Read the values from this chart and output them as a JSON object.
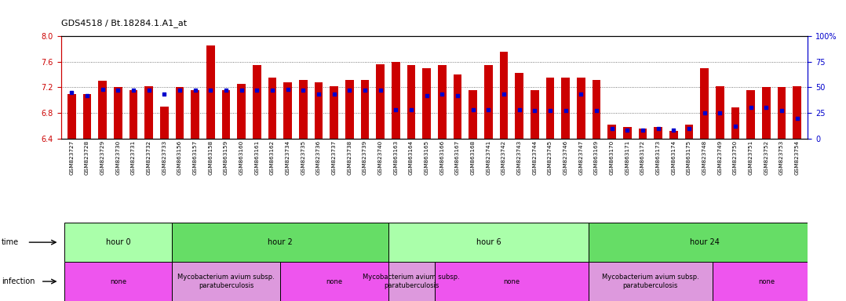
{
  "title": "GDS4518 / Bt.18284.1.A1_at",
  "ylim_left": [
    6.4,
    8.0
  ],
  "ylim_right": [
    0,
    100
  ],
  "yticks_left": [
    6.4,
    6.8,
    7.2,
    7.6,
    8.0
  ],
  "yticks_right": [
    0,
    25,
    50,
    75,
    100
  ],
  "yticklabels_right": [
    "0",
    "25",
    "50",
    "75",
    "100%"
  ],
  "bar_color": "#cc0000",
  "dot_color": "#0000cc",
  "bar_baseline": 6.4,
  "samples": [
    "GSM823727",
    "GSM823728",
    "GSM823729",
    "GSM823730",
    "GSM823731",
    "GSM823732",
    "GSM823733",
    "GSM863156",
    "GSM863157",
    "GSM863158",
    "GSM863159",
    "GSM863160",
    "GSM863161",
    "GSM863162",
    "GSM823734",
    "GSM823735",
    "GSM823736",
    "GSM823737",
    "GSM823738",
    "GSM823739",
    "GSM823740",
    "GSM863163",
    "GSM863164",
    "GSM863165",
    "GSM863166",
    "GSM863167",
    "GSM863168",
    "GSM823741",
    "GSM823742",
    "GSM823743",
    "GSM823744",
    "GSM823745",
    "GSM823746",
    "GSM823747",
    "GSM863169",
    "GSM863170",
    "GSM863171",
    "GSM863172",
    "GSM863173",
    "GSM863174",
    "GSM863175",
    "GSM823748",
    "GSM823749",
    "GSM823750",
    "GSM823751",
    "GSM823752",
    "GSM823753",
    "GSM823754"
  ],
  "bar_values": [
    7.1,
    7.1,
    7.3,
    7.2,
    7.15,
    7.22,
    6.9,
    7.2,
    7.15,
    7.85,
    7.15,
    7.25,
    7.55,
    7.35,
    7.28,
    7.32,
    7.28,
    7.22,
    7.32,
    7.32,
    7.56,
    7.6,
    7.55,
    7.5,
    7.55,
    7.4,
    7.15,
    7.55,
    7.75,
    7.42,
    7.15,
    7.35,
    7.35,
    7.35,
    7.32,
    6.62,
    6.58,
    6.55,
    6.58,
    6.52,
    6.62,
    7.5,
    7.22,
    6.88,
    7.15,
    7.2,
    7.2,
    7.22
  ],
  "percentile_values": [
    45,
    42,
    48,
    47,
    47,
    47,
    43,
    47,
    47,
    47,
    47,
    47,
    47,
    47,
    48,
    47,
    43,
    43,
    47,
    47,
    47,
    28,
    28,
    42,
    43,
    42,
    28,
    28,
    43,
    28,
    27,
    27,
    27,
    43,
    27,
    10,
    8,
    8,
    10,
    8,
    10,
    25,
    25,
    12,
    30,
    30,
    27,
    20
  ],
  "time_groups": [
    {
      "label": "hour 0",
      "start": 0,
      "end": 7,
      "color": "#aaffaa"
    },
    {
      "label": "hour 2",
      "start": 7,
      "end": 21,
      "color": "#66dd66"
    },
    {
      "label": "hour 6",
      "start": 21,
      "end": 34,
      "color": "#aaffaa"
    },
    {
      "label": "hour 24",
      "start": 34,
      "end": 49,
      "color": "#66dd66"
    }
  ],
  "infection_groups": [
    {
      "label": "none",
      "start": 0,
      "end": 7,
      "color": "#ee55ee"
    },
    {
      "label": "Mycobacterium avium subsp.\nparatuberculosis",
      "start": 7,
      "end": 14,
      "color": "#dd99dd"
    },
    {
      "label": "none",
      "start": 14,
      "end": 21,
      "color": "#ee55ee"
    },
    {
      "label": "Mycobacterium avium subsp.\nparatuberculosis",
      "start": 21,
      "end": 24,
      "color": "#dd99dd"
    },
    {
      "label": "none",
      "start": 24,
      "end": 34,
      "color": "#ee55ee"
    },
    {
      "label": "Mycobacterium avium subsp.\nparatuberculosis",
      "start": 34,
      "end": 42,
      "color": "#dd99dd"
    },
    {
      "label": "none",
      "start": 42,
      "end": 49,
      "color": "#ee55ee"
    }
  ],
  "grid_color": "#555555",
  "bg_color": "#ffffff",
  "title_color": "#000000",
  "left_axis_color": "#cc0000",
  "right_axis_color": "#0000cc"
}
